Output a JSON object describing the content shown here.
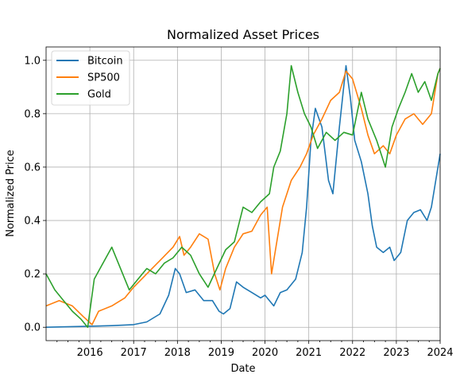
{
  "chart_data": {
    "type": "line",
    "title": "Normalized Asset Prices",
    "xlabel": "Date",
    "ylabel": "Normalized Price",
    "xlim": [
      2015.0,
      2024.0
    ],
    "ylim": [
      -0.05,
      1.05
    ],
    "x_ticks": [
      {
        "value": 2016,
        "label": "2016"
      },
      {
        "value": 2017,
        "label": "2017"
      },
      {
        "value": 2018,
        "label": "2018"
      },
      {
        "value": 2019,
        "label": "2019"
      },
      {
        "value": 2020,
        "label": "2020"
      },
      {
        "value": 2021,
        "label": "2021"
      },
      {
        "value": 2022,
        "label": "2022"
      },
      {
        "value": 2023,
        "label": "2023"
      },
      {
        "value": 2024,
        "label": "2024"
      }
    ],
    "y_ticks": [
      {
        "value": 0.0,
        "label": "0.0"
      },
      {
        "value": 0.2,
        "label": "0.2"
      },
      {
        "value": 0.4,
        "label": "0.4"
      },
      {
        "value": 0.6,
        "label": "0.6"
      },
      {
        "value": 0.8,
        "label": "0.8"
      },
      {
        "value": 1.0,
        "label": "1.0"
      }
    ],
    "grid": true,
    "legend_position": "top-left",
    "series": [
      {
        "name": "Bitcoin",
        "color": "#1f77b4",
        "x": [
          2015.0,
          2015.5,
          2016.0,
          2016.5,
          2017.0,
          2017.3,
          2017.6,
          2017.8,
          2017.95,
          2018.05,
          2018.2,
          2018.4,
          2018.6,
          2018.8,
          2018.95,
          2019.05,
          2019.2,
          2019.35,
          2019.5,
          2019.7,
          2019.9,
          2020.0,
          2020.2,
          2020.35,
          2020.5,
          2020.7,
          2020.85,
          2020.95,
          2021.05,
          2021.15,
          2021.3,
          2021.45,
          2021.55,
          2021.7,
          2021.85,
          2021.95,
          2022.05,
          2022.2,
          2022.35,
          2022.45,
          2022.55,
          2022.7,
          2022.85,
          2022.95,
          2023.1,
          2023.25,
          2023.4,
          2023.55,
          2023.7,
          2023.8,
          2023.9,
          2024.0
        ],
        "y": [
          0.0,
          0.002,
          0.004,
          0.006,
          0.01,
          0.02,
          0.05,
          0.12,
          0.22,
          0.2,
          0.13,
          0.14,
          0.1,
          0.1,
          0.06,
          0.05,
          0.07,
          0.17,
          0.15,
          0.13,
          0.11,
          0.12,
          0.08,
          0.13,
          0.14,
          0.18,
          0.28,
          0.45,
          0.7,
          0.82,
          0.75,
          0.55,
          0.5,
          0.75,
          0.98,
          0.86,
          0.7,
          0.62,
          0.5,
          0.38,
          0.3,
          0.28,
          0.3,
          0.25,
          0.28,
          0.4,
          0.43,
          0.44,
          0.4,
          0.45,
          0.55,
          0.65
        ]
      },
      {
        "name": "SP500",
        "color": "#ff7f0e",
        "x": [
          2015.0,
          2015.3,
          2015.6,
          2015.85,
          2016.05,
          2016.2,
          2016.5,
          2016.8,
          2017.0,
          2017.3,
          2017.6,
          2017.9,
          2018.05,
          2018.15,
          2018.3,
          2018.5,
          2018.7,
          2018.85,
          2018.97,
          2019.1,
          2019.3,
          2019.5,
          2019.7,
          2019.9,
          2020.05,
          2020.15,
          2020.25,
          2020.4,
          2020.6,
          2020.8,
          2020.95,
          2021.1,
          2021.3,
          2021.5,
          2021.7,
          2021.85,
          2022.0,
          2022.2,
          2022.35,
          2022.5,
          2022.7,
          2022.85,
          2023.0,
          2023.2,
          2023.4,
          2023.6,
          2023.8,
          2023.95,
          2024.0
        ],
        "y": [
          0.08,
          0.1,
          0.08,
          0.04,
          0.01,
          0.06,
          0.08,
          0.11,
          0.15,
          0.2,
          0.25,
          0.3,
          0.34,
          0.27,
          0.3,
          0.35,
          0.33,
          0.2,
          0.14,
          0.22,
          0.3,
          0.35,
          0.36,
          0.42,
          0.45,
          0.2,
          0.3,
          0.45,
          0.55,
          0.6,
          0.65,
          0.72,
          0.78,
          0.85,
          0.88,
          0.96,
          0.93,
          0.82,
          0.72,
          0.65,
          0.68,
          0.65,
          0.72,
          0.78,
          0.8,
          0.76,
          0.8,
          0.95,
          0.97
        ]
      },
      {
        "name": "Gold",
        "color": "#2ca02c",
        "x": [
          2015.0,
          2015.2,
          2015.4,
          2015.6,
          2015.8,
          2015.95,
          2016.1,
          2016.3,
          2016.5,
          2016.7,
          2016.9,
          2017.1,
          2017.3,
          2017.5,
          2017.7,
          2017.9,
          2018.1,
          2018.3,
          2018.5,
          2018.7,
          2018.9,
          2019.1,
          2019.3,
          2019.5,
          2019.7,
          2019.9,
          2020.1,
          2020.2,
          2020.35,
          2020.5,
          2020.6,
          2020.75,
          2020.9,
          2021.05,
          2021.2,
          2021.4,
          2021.6,
          2021.8,
          2022.0,
          2022.2,
          2022.35,
          2022.55,
          2022.75,
          2022.9,
          2023.05,
          2023.2,
          2023.35,
          2023.5,
          2023.65,
          2023.8,
          2023.95,
          2024.0
        ],
        "y": [
          0.2,
          0.14,
          0.1,
          0.06,
          0.03,
          0.0,
          0.18,
          0.24,
          0.3,
          0.22,
          0.14,
          0.18,
          0.22,
          0.2,
          0.24,
          0.26,
          0.3,
          0.27,
          0.2,
          0.15,
          0.22,
          0.29,
          0.32,
          0.45,
          0.43,
          0.47,
          0.5,
          0.6,
          0.66,
          0.8,
          0.98,
          0.88,
          0.8,
          0.75,
          0.67,
          0.73,
          0.7,
          0.73,
          0.72,
          0.88,
          0.78,
          0.7,
          0.6,
          0.75,
          0.82,
          0.88,
          0.95,
          0.88,
          0.92,
          0.85,
          0.95,
          0.97
        ]
      }
    ]
  }
}
